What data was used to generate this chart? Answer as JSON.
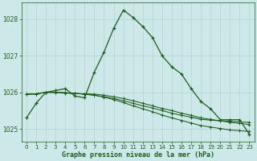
{
  "hours": [
    0,
    1,
    2,
    3,
    4,
    5,
    6,
    7,
    8,
    9,
    10,
    11,
    12,
    13,
    14,
    15,
    16,
    17,
    18,
    19,
    20,
    21,
    22,
    23
  ],
  "series1": [
    1025.3,
    1025.7,
    1026.0,
    1026.05,
    1026.1,
    1025.9,
    1025.85,
    1026.55,
    1027.1,
    1027.75,
    1028.25,
    1028.05,
    1027.8,
    1027.5,
    1027.0,
    1026.7,
    1026.5,
    1026.1,
    1025.75,
    1025.55,
    1025.25,
    1025.25,
    1025.25,
    1024.85
  ],
  "series2": [
    1025.95,
    1025.95,
    1026.0,
    1026.0,
    1025.98,
    1025.97,
    1025.96,
    1025.95,
    1025.92,
    1025.88,
    1025.83,
    1025.77,
    1025.7,
    1025.63,
    1025.56,
    1025.5,
    1025.43,
    1025.37,
    1025.3,
    1025.26,
    1025.22,
    1025.18,
    1025.15,
    1025.12
  ],
  "series3": [
    1025.95,
    1025.96,
    1026.0,
    1026.0,
    1025.99,
    1025.97,
    1025.95,
    1025.92,
    1025.88,
    1025.83,
    1025.77,
    1025.7,
    1025.63,
    1025.57,
    1025.5,
    1025.43,
    1025.37,
    1025.32,
    1025.26,
    1025.24,
    1025.22,
    1025.21,
    1025.19,
    1025.18
  ],
  "series4": [
    1025.95,
    1025.96,
    1026.0,
    1026.0,
    1025.99,
    1025.97,
    1025.95,
    1025.92,
    1025.87,
    1025.8,
    1025.72,
    1025.63,
    1025.55,
    1025.47,
    1025.38,
    1025.3,
    1025.23,
    1025.16,
    1025.09,
    1025.05,
    1025.01,
    1024.97,
    1024.95,
    1024.93
  ],
  "line_color": "#1e5c1e",
  "bg_color": "#cce8e8",
  "grid_color": "#b8d4cc",
  "text_color": "#1e5c1e",
  "xlabel": "Graphe pression niveau de la mer (hPa)",
  "ylim": [
    1024.65,
    1028.45
  ],
  "yticks": [
    1025,
    1026,
    1027,
    1028
  ],
  "xticks": [
    0,
    1,
    2,
    3,
    4,
    5,
    6,
    7,
    8,
    9,
    10,
    11,
    12,
    13,
    14,
    15,
    16,
    17,
    18,
    19,
    20,
    21,
    22,
    23
  ]
}
